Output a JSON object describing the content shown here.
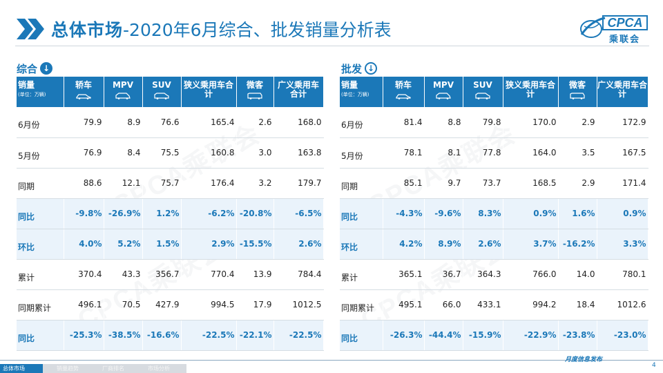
{
  "header": {
    "title_bold": "总体市场",
    "title_rest": "-2020年6月综合、批发销量分析表",
    "logo_text": "CPCA",
    "logo_cn": "乘联会"
  },
  "watermark": "CPCA乘联会",
  "left": {
    "section": "综合",
    "columns": [
      {
        "label": "销量",
        "unit": "(单位：万辆)"
      },
      {
        "label": "轿车",
        "icon": "sedan-icon"
      },
      {
        "label": "MPV",
        "icon": "mpv-icon"
      },
      {
        "label": "SUV",
        "icon": "suv-icon"
      },
      {
        "label": "狭义乘用车合计"
      },
      {
        "label": "微客",
        "icon": "minivan-icon"
      },
      {
        "label": "广义乘用车合计"
      }
    ],
    "rows": [
      {
        "label": "6月份",
        "values": [
          "79.9",
          "8.9",
          "76.6",
          "165.4",
          "2.6",
          "168.0"
        ]
      },
      {
        "label": "5月份",
        "values": [
          "76.9",
          "8.4",
          "75.5",
          "160.8",
          "3.0",
          "163.8"
        ]
      },
      {
        "label": "同期",
        "values": [
          "88.6",
          "12.1",
          "75.7",
          "176.4",
          "3.2",
          "179.7"
        ]
      },
      {
        "label": "同比",
        "values": [
          "-9.8%",
          "-26.9%",
          "1.2%",
          "-6.2%",
          "-20.8%",
          "-6.5%"
        ]
      },
      {
        "label": "环比",
        "values": [
          "4.0%",
          "5.2%",
          "1.5%",
          "2.9%",
          "-15.5%",
          "2.6%"
        ]
      },
      {
        "label": "累计",
        "values": [
          "370.4",
          "43.3",
          "356.7",
          "770.4",
          "13.9",
          "784.4"
        ]
      },
      {
        "label": "同期累计",
        "values": [
          "496.1",
          "70.5",
          "427.9",
          "994.5",
          "17.9",
          "1012.5"
        ]
      },
      {
        "label": "同比",
        "values": [
          "-25.3%",
          "-38.5%",
          "-16.6%",
          "-22.5%",
          "-22.1%",
          "-22.5%"
        ]
      }
    ]
  },
  "right": {
    "section": "批发",
    "columns": [
      {
        "label": "销量",
        "unit": "(单位：万辆)"
      },
      {
        "label": "轿车",
        "icon": "sedan-icon"
      },
      {
        "label": "MPV",
        "icon": "mpv-icon"
      },
      {
        "label": "SUV",
        "icon": "suv-icon"
      },
      {
        "label": "狭义乘用车合计"
      },
      {
        "label": "微客",
        "icon": "minivan-icon"
      },
      {
        "label": "广义乘用车合计"
      }
    ],
    "rows": [
      {
        "label": "6月份",
        "values": [
          "81.4",
          "8.8",
          "79.8",
          "170.0",
          "2.9",
          "172.9"
        ]
      },
      {
        "label": "5月份",
        "values": [
          "78.1",
          "8.1",
          "77.8",
          "164.0",
          "3.5",
          "167.5"
        ]
      },
      {
        "label": "同期",
        "values": [
          "85.1",
          "9.7",
          "73.7",
          "168.5",
          "2.9",
          "171.4"
        ]
      },
      {
        "label": "同比",
        "values": [
          "-4.3%",
          "-9.6%",
          "8.3%",
          "0.9%",
          "1.6%",
          "0.9%"
        ]
      },
      {
        "label": "环比",
        "values": [
          "4.2%",
          "8.9%",
          "2.6%",
          "3.7%",
          "-16.2%",
          "3.3%"
        ]
      },
      {
        "label": "累计",
        "values": [
          "365.1",
          "36.7",
          "364.3",
          "766.0",
          "14.0",
          "780.1"
        ]
      },
      {
        "label": "同期累计",
        "values": [
          "495.1",
          "66.0",
          "433.1",
          "994.2",
          "18.4",
          "1012.6"
        ]
      },
      {
        "label": "同比",
        "values": [
          "-26.3%",
          "-44.4%",
          "-15.9%",
          "-22.9%",
          "-23.8%",
          "-23.0%"
        ]
      }
    ]
  },
  "footer": {
    "tabs": [
      "总体市场",
      "销量趋势",
      "厂商排名",
      "市场分析"
    ],
    "slogan": "月度信息发布",
    "page": "4"
  },
  "colors": {
    "accent": "#1b78b8",
    "alt_row": "#eaf3fb"
  }
}
